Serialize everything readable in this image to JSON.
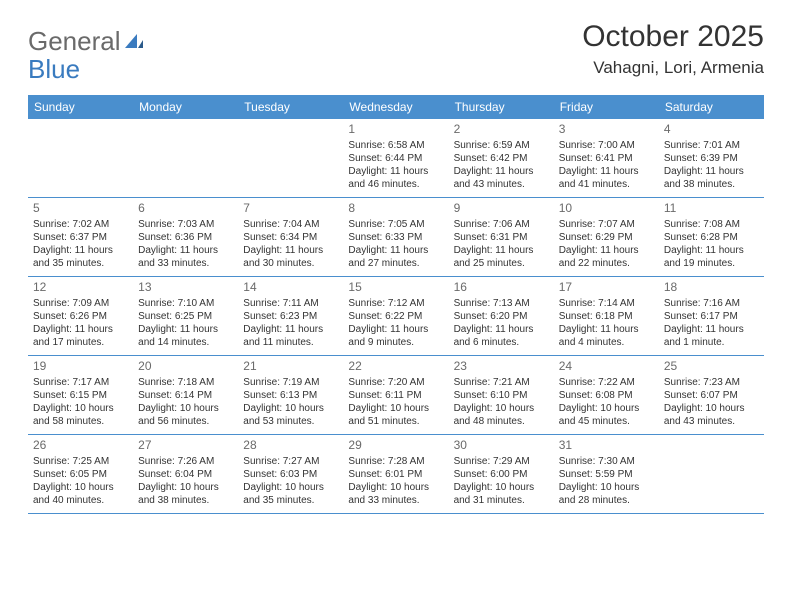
{
  "logo": {
    "part1": "General",
    "part2": "Blue"
  },
  "title": "October 2025",
  "location": "Vahagni, Lori, Armenia",
  "day_names": [
    "Sunday",
    "Monday",
    "Tuesday",
    "Wednesday",
    "Thursday",
    "Friday",
    "Saturday"
  ],
  "colors": {
    "header_bg": "#4a8fce",
    "header_text": "#ffffff",
    "border": "#4a8fce",
    "logo_gray": "#6a6a6a",
    "logo_blue": "#3a7bbf",
    "text": "#333333",
    "daynum": "#6a6a6a",
    "bg": "#ffffff"
  },
  "typography": {
    "title_fontsize": 30,
    "location_fontsize": 17,
    "logo_fontsize": 26,
    "dayheader_fontsize": 12,
    "daynum_fontsize": 12,
    "body_fontsize": 10
  },
  "weeks": [
    [
      null,
      null,
      null,
      {
        "n": "1",
        "sr": "Sunrise: 6:58 AM",
        "ss": "Sunset: 6:44 PM",
        "dl1": "Daylight: 11 hours",
        "dl2": "and 46 minutes."
      },
      {
        "n": "2",
        "sr": "Sunrise: 6:59 AM",
        "ss": "Sunset: 6:42 PM",
        "dl1": "Daylight: 11 hours",
        "dl2": "and 43 minutes."
      },
      {
        "n": "3",
        "sr": "Sunrise: 7:00 AM",
        "ss": "Sunset: 6:41 PM",
        "dl1": "Daylight: 11 hours",
        "dl2": "and 41 minutes."
      },
      {
        "n": "4",
        "sr": "Sunrise: 7:01 AM",
        "ss": "Sunset: 6:39 PM",
        "dl1": "Daylight: 11 hours",
        "dl2": "and 38 minutes."
      }
    ],
    [
      {
        "n": "5",
        "sr": "Sunrise: 7:02 AM",
        "ss": "Sunset: 6:37 PM",
        "dl1": "Daylight: 11 hours",
        "dl2": "and 35 minutes."
      },
      {
        "n": "6",
        "sr": "Sunrise: 7:03 AM",
        "ss": "Sunset: 6:36 PM",
        "dl1": "Daylight: 11 hours",
        "dl2": "and 33 minutes."
      },
      {
        "n": "7",
        "sr": "Sunrise: 7:04 AM",
        "ss": "Sunset: 6:34 PM",
        "dl1": "Daylight: 11 hours",
        "dl2": "and 30 minutes."
      },
      {
        "n": "8",
        "sr": "Sunrise: 7:05 AM",
        "ss": "Sunset: 6:33 PM",
        "dl1": "Daylight: 11 hours",
        "dl2": "and 27 minutes."
      },
      {
        "n": "9",
        "sr": "Sunrise: 7:06 AM",
        "ss": "Sunset: 6:31 PM",
        "dl1": "Daylight: 11 hours",
        "dl2": "and 25 minutes."
      },
      {
        "n": "10",
        "sr": "Sunrise: 7:07 AM",
        "ss": "Sunset: 6:29 PM",
        "dl1": "Daylight: 11 hours",
        "dl2": "and 22 minutes."
      },
      {
        "n": "11",
        "sr": "Sunrise: 7:08 AM",
        "ss": "Sunset: 6:28 PM",
        "dl1": "Daylight: 11 hours",
        "dl2": "and 19 minutes."
      }
    ],
    [
      {
        "n": "12",
        "sr": "Sunrise: 7:09 AM",
        "ss": "Sunset: 6:26 PM",
        "dl1": "Daylight: 11 hours",
        "dl2": "and 17 minutes."
      },
      {
        "n": "13",
        "sr": "Sunrise: 7:10 AM",
        "ss": "Sunset: 6:25 PM",
        "dl1": "Daylight: 11 hours",
        "dl2": "and 14 minutes."
      },
      {
        "n": "14",
        "sr": "Sunrise: 7:11 AM",
        "ss": "Sunset: 6:23 PM",
        "dl1": "Daylight: 11 hours",
        "dl2": "and 11 minutes."
      },
      {
        "n": "15",
        "sr": "Sunrise: 7:12 AM",
        "ss": "Sunset: 6:22 PM",
        "dl1": "Daylight: 11 hours",
        "dl2": "and 9 minutes."
      },
      {
        "n": "16",
        "sr": "Sunrise: 7:13 AM",
        "ss": "Sunset: 6:20 PM",
        "dl1": "Daylight: 11 hours",
        "dl2": "and 6 minutes."
      },
      {
        "n": "17",
        "sr": "Sunrise: 7:14 AM",
        "ss": "Sunset: 6:18 PM",
        "dl1": "Daylight: 11 hours",
        "dl2": "and 4 minutes."
      },
      {
        "n": "18",
        "sr": "Sunrise: 7:16 AM",
        "ss": "Sunset: 6:17 PM",
        "dl1": "Daylight: 11 hours",
        "dl2": "and 1 minute."
      }
    ],
    [
      {
        "n": "19",
        "sr": "Sunrise: 7:17 AM",
        "ss": "Sunset: 6:15 PM",
        "dl1": "Daylight: 10 hours",
        "dl2": "and 58 minutes."
      },
      {
        "n": "20",
        "sr": "Sunrise: 7:18 AM",
        "ss": "Sunset: 6:14 PM",
        "dl1": "Daylight: 10 hours",
        "dl2": "and 56 minutes."
      },
      {
        "n": "21",
        "sr": "Sunrise: 7:19 AM",
        "ss": "Sunset: 6:13 PM",
        "dl1": "Daylight: 10 hours",
        "dl2": "and 53 minutes."
      },
      {
        "n": "22",
        "sr": "Sunrise: 7:20 AM",
        "ss": "Sunset: 6:11 PM",
        "dl1": "Daylight: 10 hours",
        "dl2": "and 51 minutes."
      },
      {
        "n": "23",
        "sr": "Sunrise: 7:21 AM",
        "ss": "Sunset: 6:10 PM",
        "dl1": "Daylight: 10 hours",
        "dl2": "and 48 minutes."
      },
      {
        "n": "24",
        "sr": "Sunrise: 7:22 AM",
        "ss": "Sunset: 6:08 PM",
        "dl1": "Daylight: 10 hours",
        "dl2": "and 45 minutes."
      },
      {
        "n": "25",
        "sr": "Sunrise: 7:23 AM",
        "ss": "Sunset: 6:07 PM",
        "dl1": "Daylight: 10 hours",
        "dl2": "and 43 minutes."
      }
    ],
    [
      {
        "n": "26",
        "sr": "Sunrise: 7:25 AM",
        "ss": "Sunset: 6:05 PM",
        "dl1": "Daylight: 10 hours",
        "dl2": "and 40 minutes."
      },
      {
        "n": "27",
        "sr": "Sunrise: 7:26 AM",
        "ss": "Sunset: 6:04 PM",
        "dl1": "Daylight: 10 hours",
        "dl2": "and 38 minutes."
      },
      {
        "n": "28",
        "sr": "Sunrise: 7:27 AM",
        "ss": "Sunset: 6:03 PM",
        "dl1": "Daylight: 10 hours",
        "dl2": "and 35 minutes."
      },
      {
        "n": "29",
        "sr": "Sunrise: 7:28 AM",
        "ss": "Sunset: 6:01 PM",
        "dl1": "Daylight: 10 hours",
        "dl2": "and 33 minutes."
      },
      {
        "n": "30",
        "sr": "Sunrise: 7:29 AM",
        "ss": "Sunset: 6:00 PM",
        "dl1": "Daylight: 10 hours",
        "dl2": "and 31 minutes."
      },
      {
        "n": "31",
        "sr": "Sunrise: 7:30 AM",
        "ss": "Sunset: 5:59 PM",
        "dl1": "Daylight: 10 hours",
        "dl2": "and 28 minutes."
      },
      null
    ]
  ]
}
